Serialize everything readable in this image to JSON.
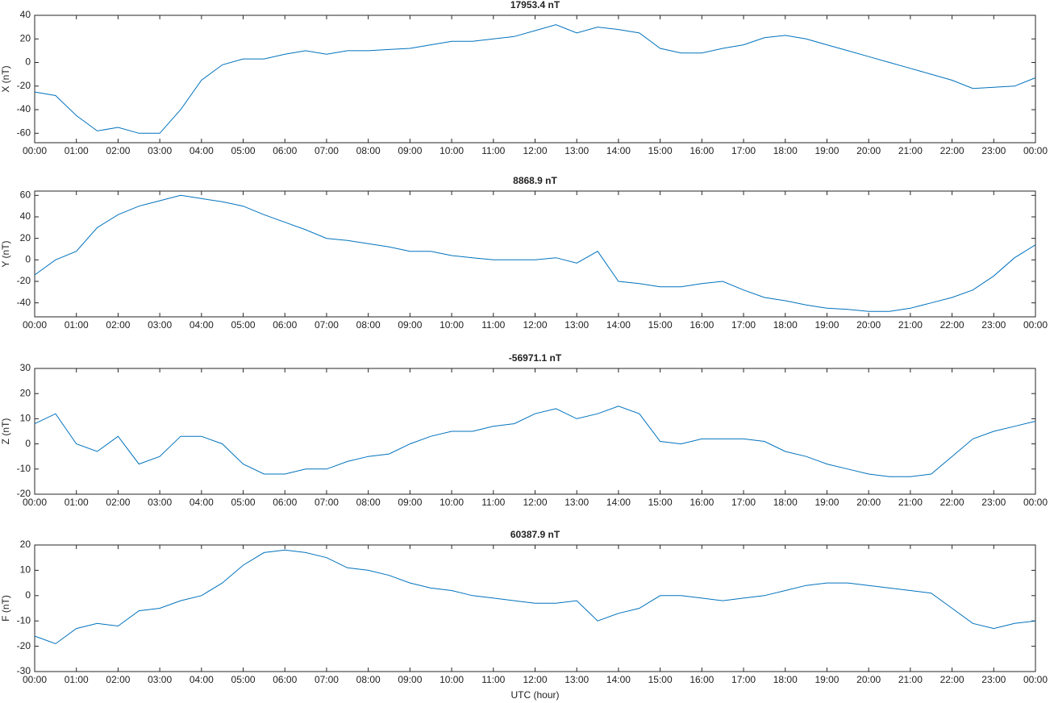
{
  "chart_data": [
    {
      "type": "line",
      "title": "17953.4 nT",
      "ylabel": "X (nT)",
      "color": "#0072bd",
      "xlim": [
        0,
        24
      ],
      "ylim": [
        -68,
        40
      ],
      "yticks": [
        -60,
        -40,
        -20,
        0,
        20,
        40
      ],
      "xticks": [
        {
          "value": 0,
          "label": "00:00"
        },
        {
          "value": 1,
          "label": "01:00"
        },
        {
          "value": 2,
          "label": "02:00"
        },
        {
          "value": 3,
          "label": "03:00"
        },
        {
          "value": 4,
          "label": "04:00"
        },
        {
          "value": 5,
          "label": "05:00"
        },
        {
          "value": 6,
          "label": "06:00"
        },
        {
          "value": 7,
          "label": "07:00"
        },
        {
          "value": 8,
          "label": "08:00"
        },
        {
          "value": 9,
          "label": "09:00"
        },
        {
          "value": 10,
          "label": "10:00"
        },
        {
          "value": 11,
          "label": "11:00"
        },
        {
          "value": 12,
          "label": "12:00"
        },
        {
          "value": 13,
          "label": "13:00"
        },
        {
          "value": 14,
          "label": "14:00"
        },
        {
          "value": 15,
          "label": "15:00"
        },
        {
          "value": 16,
          "label": "16:00"
        },
        {
          "value": 17,
          "label": "17:00"
        },
        {
          "value": 18,
          "label": "18:00"
        },
        {
          "value": 19,
          "label": "19:00"
        },
        {
          "value": 20,
          "label": "20:00"
        },
        {
          "value": 21,
          "label": "21:00"
        },
        {
          "value": 22,
          "label": "22:00"
        },
        {
          "value": 23,
          "label": "23:00"
        },
        {
          "value": 24,
          "label": "00:00"
        }
      ],
      "x": [
        0,
        0.5,
        1,
        1.5,
        2,
        2.5,
        3,
        3.5,
        4,
        4.5,
        5,
        5.5,
        6,
        6.5,
        7,
        7.5,
        8,
        8.5,
        9,
        9.5,
        10,
        10.5,
        11,
        11.5,
        12,
        12.5,
        13,
        13.5,
        14,
        14.5,
        15,
        15.5,
        16,
        16.5,
        17,
        17.5,
        18,
        18.5,
        19,
        19.5,
        20,
        20.5,
        21,
        21.5,
        22,
        22.5,
        23,
        23.5,
        24
      ],
      "values": [
        -25,
        -28,
        -45,
        -58,
        -55,
        -60,
        -60,
        -40,
        -15,
        -2,
        3,
        3,
        7,
        10,
        7,
        10,
        10,
        11,
        12,
        15,
        18,
        18,
        20,
        22,
        27,
        32,
        25,
        30,
        28,
        25,
        12,
        8,
        8,
        12,
        15,
        21,
        23,
        20,
        15,
        10,
        5,
        0,
        -5,
        -10,
        -15,
        -22,
        -21,
        -20,
        -13
      ]
    },
    {
      "type": "line",
      "title": "8868.9 nT",
      "ylabel": "Y (nT)",
      "color": "#0072bd",
      "xlim": [
        0,
        24
      ],
      "ylim": [
        -53,
        64
      ],
      "yticks": [
        -40,
        -20,
        0,
        20,
        40,
        60
      ],
      "xticks": [
        {
          "value": 0,
          "label": "00:00"
        },
        {
          "value": 1,
          "label": "01:00"
        },
        {
          "value": 2,
          "label": "02:00"
        },
        {
          "value": 3,
          "label": "03:00"
        },
        {
          "value": 4,
          "label": "04:00"
        },
        {
          "value": 5,
          "label": "05:00"
        },
        {
          "value": 6,
          "label": "06:00"
        },
        {
          "value": 7,
          "label": "07:00"
        },
        {
          "value": 8,
          "label": "08:00"
        },
        {
          "value": 9,
          "label": "09:00"
        },
        {
          "value": 10,
          "label": "10:00"
        },
        {
          "value": 11,
          "label": "11:00"
        },
        {
          "value": 12,
          "label": "12:00"
        },
        {
          "value": 13,
          "label": "13:00"
        },
        {
          "value": 14,
          "label": "14:00"
        },
        {
          "value": 15,
          "label": "15:00"
        },
        {
          "value": 16,
          "label": "16:00"
        },
        {
          "value": 17,
          "label": "17:00"
        },
        {
          "value": 18,
          "label": "18:00"
        },
        {
          "value": 19,
          "label": "19:00"
        },
        {
          "value": 20,
          "label": "20:00"
        },
        {
          "value": 21,
          "label": "21:00"
        },
        {
          "value": 22,
          "label": "22:00"
        },
        {
          "value": 23,
          "label": "23:00"
        },
        {
          "value": 24,
          "label": "00:00"
        }
      ],
      "x": [
        0,
        0.5,
        1,
        1.5,
        2,
        2.5,
        3,
        3.5,
        4,
        4.5,
        5,
        5.5,
        6,
        6.5,
        7,
        7.5,
        8,
        8.5,
        9,
        9.5,
        10,
        10.5,
        11,
        11.5,
        12,
        12.5,
        13,
        13.5,
        14,
        14.5,
        15,
        15.5,
        16,
        16.5,
        17,
        17.5,
        18,
        18.5,
        19,
        19.5,
        20,
        20.5,
        21,
        21.5,
        22,
        22.5,
        23,
        23.5,
        24
      ],
      "values": [
        -14,
        0,
        8,
        30,
        42,
        50,
        55,
        60,
        57,
        54,
        50,
        42,
        35,
        28,
        20,
        18,
        15,
        12,
        8,
        8,
        4,
        2,
        0,
        0,
        0,
        2,
        -3,
        8,
        -20,
        -22,
        -25,
        -25,
        -22,
        -20,
        -28,
        -35,
        -38,
        -42,
        -45,
        -46,
        -48,
        -48,
        -45,
        -40,
        -35,
        -28,
        -15,
        2,
        14
      ]
    },
    {
      "type": "line",
      "title": "-56971.1 nT",
      "ylabel": "Z (nT)",
      "color": "#0072bd",
      "xlim": [
        0,
        24
      ],
      "ylim": [
        -20,
        30
      ],
      "yticks": [
        -20,
        -10,
        0,
        10,
        20,
        30
      ],
      "xticks": [
        {
          "value": 0,
          "label": "00:00"
        },
        {
          "value": 1,
          "label": "01:00"
        },
        {
          "value": 2,
          "label": "02:00"
        },
        {
          "value": 3,
          "label": "03:00"
        },
        {
          "value": 4,
          "label": "04:00"
        },
        {
          "value": 5,
          "label": "05:00"
        },
        {
          "value": 6,
          "label": "06:00"
        },
        {
          "value": 7,
          "label": "07:00"
        },
        {
          "value": 8,
          "label": "08:00"
        },
        {
          "value": 9,
          "label": "09:00"
        },
        {
          "value": 10,
          "label": "10:00"
        },
        {
          "value": 11,
          "label": "11:00"
        },
        {
          "value": 12,
          "label": "12:00"
        },
        {
          "value": 13,
          "label": "13:00"
        },
        {
          "value": 14,
          "label": "14:00"
        },
        {
          "value": 15,
          "label": "15:00"
        },
        {
          "value": 16,
          "label": "16:00"
        },
        {
          "value": 17,
          "label": "17:00"
        },
        {
          "value": 18,
          "label": "18:00"
        },
        {
          "value": 19,
          "label": "19:00"
        },
        {
          "value": 20,
          "label": "20:00"
        },
        {
          "value": 21,
          "label": "21:00"
        },
        {
          "value": 22,
          "label": "22:00"
        },
        {
          "value": 23,
          "label": "23:00"
        },
        {
          "value": 24,
          "label": "00:00"
        }
      ],
      "x": [
        0,
        0.5,
        1,
        1.5,
        2,
        2.5,
        3,
        3.5,
        4,
        4.5,
        5,
        5.5,
        6,
        6.5,
        7,
        7.5,
        8,
        8.5,
        9,
        9.5,
        10,
        10.5,
        11,
        11.5,
        12,
        12.5,
        13,
        13.5,
        14,
        14.5,
        15,
        15.5,
        16,
        16.5,
        17,
        17.5,
        18,
        18.5,
        19,
        19.5,
        20,
        20.5,
        21,
        21.5,
        22,
        22.5,
        23,
        23.5,
        24
      ],
      "values": [
        8,
        12,
        0,
        -3,
        3,
        -8,
        -5,
        3,
        3,
        0,
        -8,
        -12,
        -12,
        -10,
        -10,
        -7,
        -5,
        -4,
        0,
        3,
        5,
        5,
        7,
        8,
        12,
        14,
        10,
        12,
        15,
        12,
        1,
        0,
        2,
        2,
        2,
        1,
        -3,
        -5,
        -8,
        -10,
        -12,
        -13,
        -13,
        -12,
        -5,
        2,
        5,
        7,
        9
      ]
    },
    {
      "type": "line",
      "title": "60387.9 nT",
      "ylabel": "F (nT)",
      "xlabel": "UTC (hour)",
      "color": "#0072bd",
      "xlim": [
        0,
        24
      ],
      "ylim": [
        -30,
        20
      ],
      "yticks": [
        -30,
        -20,
        -10,
        0,
        10,
        20
      ],
      "xticks": [
        {
          "value": 0,
          "label": "00:00"
        },
        {
          "value": 1,
          "label": "01:00"
        },
        {
          "value": 2,
          "label": "02:00"
        },
        {
          "value": 3,
          "label": "03:00"
        },
        {
          "value": 4,
          "label": "04:00"
        },
        {
          "value": 5,
          "label": "05:00"
        },
        {
          "value": 6,
          "label": "06:00"
        },
        {
          "value": 7,
          "label": "07:00"
        },
        {
          "value": 8,
          "label": "08:00"
        },
        {
          "value": 9,
          "label": "09:00"
        },
        {
          "value": 10,
          "label": "10:00"
        },
        {
          "value": 11,
          "label": "11:00"
        },
        {
          "value": 12,
          "label": "12:00"
        },
        {
          "value": 13,
          "label": "13:00"
        },
        {
          "value": 14,
          "label": "14:00"
        },
        {
          "value": 15,
          "label": "15:00"
        },
        {
          "value": 16,
          "label": "16:00"
        },
        {
          "value": 17,
          "label": "17:00"
        },
        {
          "value": 18,
          "label": "18:00"
        },
        {
          "value": 19,
          "label": "19:00"
        },
        {
          "value": 20,
          "label": "20:00"
        },
        {
          "value": 21,
          "label": "21:00"
        },
        {
          "value": 22,
          "label": "22:00"
        },
        {
          "value": 23,
          "label": "23:00"
        },
        {
          "value": 24,
          "label": "00:00"
        }
      ],
      "x": [
        0,
        0.5,
        1,
        1.5,
        2,
        2.5,
        3,
        3.5,
        4,
        4.5,
        5,
        5.5,
        6,
        6.5,
        7,
        7.5,
        8,
        8.5,
        9,
        9.5,
        10,
        10.5,
        11,
        11.5,
        12,
        12.5,
        13,
        13.5,
        14,
        14.5,
        15,
        15.5,
        16,
        16.5,
        17,
        17.5,
        18,
        18.5,
        19,
        19.5,
        20,
        20.5,
        21,
        21.5,
        22,
        22.5,
        23,
        23.5,
        24
      ],
      "values": [
        -16,
        -19,
        -13,
        -11,
        -12,
        -6,
        -5,
        -2,
        0,
        5,
        12,
        17,
        18,
        17,
        15,
        11,
        10,
        8,
        5,
        3,
        2,
        0,
        -1,
        -2,
        -3,
        -3,
        -2,
        -10,
        -7,
        -5,
        0,
        0,
        -1,
        -2,
        -1,
        0,
        2,
        4,
        5,
        5,
        4,
        3,
        2,
        1,
        -5,
        -11,
        -13,
        -11,
        -10
      ]
    }
  ]
}
